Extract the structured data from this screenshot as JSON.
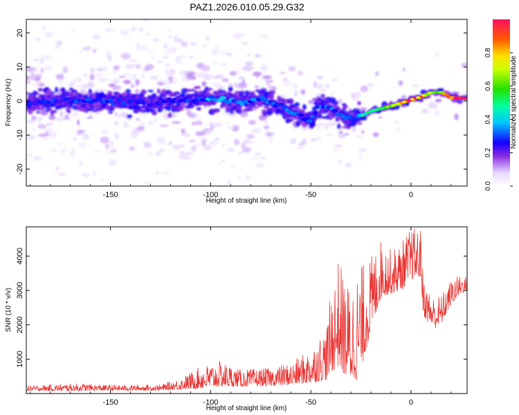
{
  "figure_title": "PAZ1.2026.010.05.29.G32",
  "chart_data": [
    {
      "type": "heatmap",
      "title": "PAZ1.2026.010.05.29.G32",
      "xlabel": "Height of straight line (km)",
      "ylabel": "Frequency (Hz)",
      "xlim": [
        -192,
        28
      ],
      "ylim": [
        -25,
        24
      ],
      "xticks": [
        -150,
        -100,
        -50,
        0
      ],
      "xtick_labels": [
        "-150",
        "-100",
        "-50",
        "0"
      ],
      "yticks": [
        -20,
        -10,
        0,
        10,
        20
      ],
      "ytick_labels": [
        "-20",
        "-10",
        "0",
        "10",
        "20"
      ],
      "ridge": {
        "x": [
          -190,
          -170,
          -150,
          -130,
          -115,
          -100,
          -85,
          -75,
          -68,
          -62,
          -55,
          -50,
          -46,
          -40,
          -35,
          -30,
          -25,
          -20,
          -10,
          0,
          5,
          10,
          15,
          20,
          28
        ],
        "y": [
          -0.5,
          0.2,
          0.0,
          -0.8,
          0.3,
          0.6,
          -0.5,
          0.8,
          -1.0,
          -2.5,
          -4.5,
          -6.0,
          -1.5,
          -2.0,
          -4.5,
          -5.0,
          -4.5,
          -3.0,
          -1.5,
          0.3,
          1.2,
          2.5,
          2.6,
          1.0,
          0.8
        ],
        "amplitude": [
          0.25,
          0.28,
          0.27,
          0.25,
          0.24,
          0.36,
          0.34,
          0.3,
          0.3,
          0.32,
          0.28,
          0.35,
          0.3,
          0.3,
          0.32,
          0.3,
          0.42,
          0.55,
          0.68,
          0.92,
          0.9,
          0.6,
          0.75,
          0.9,
          0.95
        ]
      },
      "colorbar": {
        "label": "Normalized spectral amplitude",
        "range": [
          0,
          1
        ],
        "ticks": [
          "0.0",
          "0.2",
          "0.4",
          "0.6",
          "0.8"
        ],
        "tick_values": [
          0,
          0.2,
          0.4,
          0.6,
          0.8
        ]
      }
    },
    {
      "type": "line",
      "title": "",
      "xlabel": "Height of straight line (km)",
      "ylabel": "SNR (10 * v/v)",
      "xlim": [
        -192,
        28
      ],
      "ylim": [
        0,
        4850
      ],
      "xticks": [
        -150,
        -100,
        -50,
        0
      ],
      "xtick_labels": [
        "-150",
        "-100",
        "-50",
        "0"
      ],
      "yticks": [
        1000,
        2000,
        3000,
        4000
      ],
      "ytick_labels": [
        "1000",
        "2000",
        "3000",
        "4000"
      ],
      "series": [
        {
          "name": "SNR",
          "color": "#e8312f",
          "envelope": {
            "x": [
              -192,
              -165,
              -150,
              -125,
              -115,
              -105,
              -95,
              -85,
              -70,
              -60,
              -50,
              -42,
              -40,
              -36,
              -33,
              -30,
              -27,
              -24,
              -20,
              -15,
              -10,
              -5,
              0,
              5,
              6,
              8,
              12,
              15,
              20,
              25,
              28
            ],
            "low": [
              80,
              80,
              90,
              90,
              120,
              150,
              200,
              200,
              220,
              250,
              300,
              400,
              600,
              800,
              500,
              400,
              400,
              900,
              1800,
              2800,
              2900,
              3000,
              3300,
              3400,
              2300,
              2100,
              1900,
              2000,
              2600,
              2900,
              3000
            ],
            "high": [
              230,
              300,
              250,
              260,
              450,
              800,
              950,
              700,
              750,
              900,
              1300,
              2000,
              3000,
              4000,
              3300,
              3200,
              3600,
              3800,
              4000,
              4500,
              4200,
              4400,
              4850,
              4800,
              3500,
              3100,
              2800,
              2900,
              3300,
              3500,
              3400
            ]
          }
        }
      ]
    }
  ]
}
